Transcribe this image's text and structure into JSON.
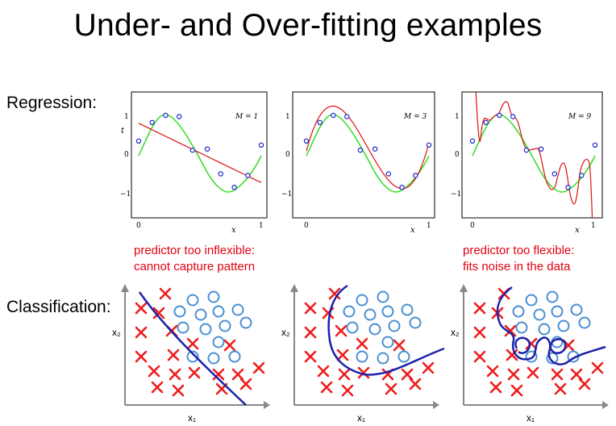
{
  "title": "Under- and Over-fitting examples",
  "labels": {
    "regression": "Regression:",
    "classification": "Classification:"
  },
  "regression": {
    "axis_y_label": "t",
    "axis_x_label": "x",
    "y_ticks": [
      "1",
      "0",
      "−1"
    ],
    "x_ticks": [
      "0",
      "1"
    ],
    "panels": [
      {
        "model_label": "M = 1"
      },
      {
        "model_label": "M = 3"
      },
      {
        "model_label": "M = 9"
      }
    ]
  },
  "notes": {
    "left": {
      "line1": "predictor too inflexible:",
      "line2": "cannot capture pattern"
    },
    "right": {
      "line1": "predictor too flexible:",
      "line2": "fits noise in the data"
    }
  },
  "classification": {
    "x_label": "x₁",
    "y_label": "x₂"
  },
  "colors": {
    "true_curve": "#33dd22",
    "fit_curve": "#e01010",
    "points": "#1a22cc",
    "cross": "#ee1c1c",
    "circle": "#4a8fd2",
    "boundary": "#1c22aa",
    "axis": "#888888"
  },
  "chart_data": [
    {
      "type": "scatter",
      "x": [
        0.0,
        0.11,
        0.22,
        0.33,
        0.44,
        0.56,
        0.67,
        0.78,
        0.89,
        1.0
      ],
      "y": [
        0.35,
        0.82,
        1.0,
        0.97,
        0.12,
        0.15,
        -0.48,
        -0.82,
        -0.52,
        0.25
      ],
      "xlim": [
        0,
        1
      ],
      "ylim": [
        -1.5,
        1.5
      ],
      "series": [
        {
          "name": "M = 1",
          "coeffs": [
            0.8,
            -1.5
          ]
        },
        {
          "name": "M = 3",
          "coeffs": [
            0.1,
            11.6,
            -34.3,
            22.9
          ]
        },
        {
          "name": "M = 9",
          "coeffs": []
        }
      ]
    }
  ]
}
